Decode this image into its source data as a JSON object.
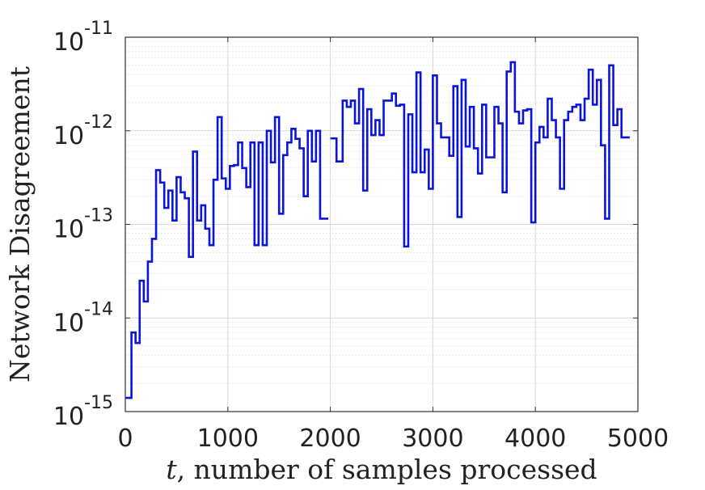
{
  "chart_data": {
    "type": "line",
    "step": true,
    "xlabel_var": "t",
    "xlabel_rest": ", number of samples processed",
    "ylabel": "Network Disagreement",
    "xlim": [
      0,
      5000
    ],
    "ylim": [
      1e-15,
      1e-11
    ],
    "yscale": "log",
    "grid": true,
    "minor_grid": true,
    "xticks": [
      0,
      1000,
      2000,
      3000,
      4000,
      5000
    ],
    "xtick_labels": [
      "0",
      "1000",
      "2000",
      "3000",
      "4000",
      "5000"
    ],
    "yticks": [
      1e-15,
      1e-14,
      1e-13,
      1e-12,
      1e-11
    ],
    "ytick_base": "10",
    "ytick_exponents": [
      "-15",
      "-14",
      "-13",
      "-12",
      "-11"
    ],
    "series": [
      {
        "color": "#0a14dc",
        "segments": [
          [
            [
              0,
              1.4e-15
            ],
            [
              60,
              7e-15
            ],
            [
              100,
              5.4e-15
            ],
            [
              140,
              2.5e-14
            ],
            [
              180,
              1.5e-14
            ],
            [
              220,
              4e-14
            ],
            [
              260,
              7e-14
            ],
            [
              300,
              3.8e-13
            ],
            [
              340,
              2.8e-13
            ],
            [
              380,
              1.5e-13
            ],
            [
              420,
              2.3e-13
            ],
            [
              460,
              1.1e-13
            ],
            [
              500,
              3.2e-13
            ],
            [
              540,
              2.2e-13
            ],
            [
              580,
              1.9e-13
            ],
            [
              620,
              4.5e-14
            ],
            [
              660,
              6e-13
            ],
            [
              700,
              1.1e-13
            ],
            [
              740,
              1.6e-13
            ],
            [
              780,
              9e-14
            ],
            [
              820,
              6e-14
            ],
            [
              860,
              3e-13
            ],
            [
              900,
              1.4e-12
            ],
            [
              940,
              3.1e-13
            ],
            [
              980,
              2.4e-13
            ],
            [
              1020,
              4.2e-13
            ],
            [
              1060,
              4.3e-13
            ],
            [
              1100,
              7.5e-13
            ],
            [
              1140,
              4e-13
            ],
            [
              1180,
              2.5e-13
            ],
            [
              1220,
              7.5e-13
            ],
            [
              1260,
              6e-14
            ],
            [
              1300,
              7.5e-13
            ],
            [
              1340,
              6e-14
            ],
            [
              1380,
              1e-12
            ],
            [
              1420,
              4.6e-13
            ],
            [
              1460,
              1.4e-12
            ],
            [
              1500,
              1.3e-13
            ],
            [
              1540,
              5.5e-13
            ],
            [
              1580,
              7.5e-13
            ],
            [
              1620,
              1.05e-12
            ],
            [
              1660,
              8.2e-13
            ],
            [
              1700,
              6.5e-13
            ],
            [
              1740,
              2e-13
            ],
            [
              1780,
              1e-12
            ],
            [
              1820,
              4.7e-13
            ],
            [
              1860,
              1e-12
            ],
            [
              1900,
              1.15e-13
            ],
            [
              1940,
              1.15e-13
            ]
          ],
          [
            [
              2000,
              8.3e-13
            ],
            [
              2060,
              4.7e-13
            ],
            [
              2120,
              2.1e-12
            ],
            [
              2160,
              1.8e-12
            ],
            [
              2200,
              2.1e-12
            ],
            [
              2240,
              1.2e-12
            ],
            [
              2280,
              2.8e-12
            ],
            [
              2320,
              2.3e-13
            ],
            [
              2360,
              1.7e-12
            ],
            [
              2400,
              9e-13
            ],
            [
              2440,
              1.3e-12
            ],
            [
              2480,
              9e-13
            ],
            [
              2520,
              2.1e-12
            ],
            [
              2560,
              2.1e-12
            ],
            [
              2600,
              2.5e-12
            ],
            [
              2640,
              1.85e-12
            ],
            [
              2680,
              1.9e-12
            ],
            [
              2720,
              5.8e-14
            ],
            [
              2760,
              1.5e-12
            ],
            [
              2800,
              3.6e-13
            ],
            [
              2840,
              4.2e-12
            ],
            [
              2880,
              3.6e-13
            ],
            [
              2920,
              6.3e-13
            ],
            [
              2960,
              2.4e-13
            ],
            [
              3000,
              3.9e-12
            ],
            [
              3040,
              1.2e-12
            ],
            [
              3080,
              8.5e-13
            ],
            [
              3120,
              8.5e-13
            ],
            [
              3160,
              5.4e-13
            ],
            [
              3200,
              3e-12
            ],
            [
              3240,
              1.2e-13
            ],
            [
              3280,
              3.5e-12
            ],
            [
              3320,
              6.8e-13
            ],
            [
              3360,
              1.8e-12
            ],
            [
              3400,
              6.5e-13
            ],
            [
              3440,
              3.5e-13
            ],
            [
              3480,
              1.9e-12
            ],
            [
              3520,
              5.2e-13
            ],
            [
              3560,
              5.2e-13
            ],
            [
              3600,
              1.8e-12
            ],
            [
              3640,
              1.2e-12
            ],
            [
              3680,
              2.2e-13
            ],
            [
              3720,
              4.3e-12
            ],
            [
              3760,
              5.4e-12
            ],
            [
              3800,
              1.6e-12
            ],
            [
              3840,
              1.2e-12
            ],
            [
              3880,
              1.65e-12
            ],
            [
              3920,
              1.7e-12
            ],
            [
              3960,
              1.05e-13
            ],
            [
              4000,
              7.5e-13
            ],
            [
              4040,
              1.1e-12
            ],
            [
              4080,
              8.5e-13
            ],
            [
              4120,
              2.2e-12
            ],
            [
              4160,
              1.3e-12
            ],
            [
              4200,
              8.5e-13
            ],
            [
              4240,
              2.4e-13
            ],
            [
              4280,
              1.3e-12
            ],
            [
              4320,
              1.6e-12
            ],
            [
              4360,
              1.8e-12
            ],
            [
              4400,
              1.9e-12
            ],
            [
              4440,
              1.3e-12
            ],
            [
              4480,
              2.2e-12
            ],
            [
              4520,
              4.5e-12
            ],
            [
              4560,
              1.9e-12
            ],
            [
              4600,
              3.5e-12
            ],
            [
              4640,
              7e-13
            ],
            [
              4680,
              1.15e-13
            ],
            [
              4720,
              5e-12
            ],
            [
              4760,
              1.15e-12
            ],
            [
              4800,
              1.7e-12
            ],
            [
              4840,
              8.5e-13
            ],
            [
              4880,
              8.5e-13
            ]
          ]
        ]
      }
    ]
  }
}
